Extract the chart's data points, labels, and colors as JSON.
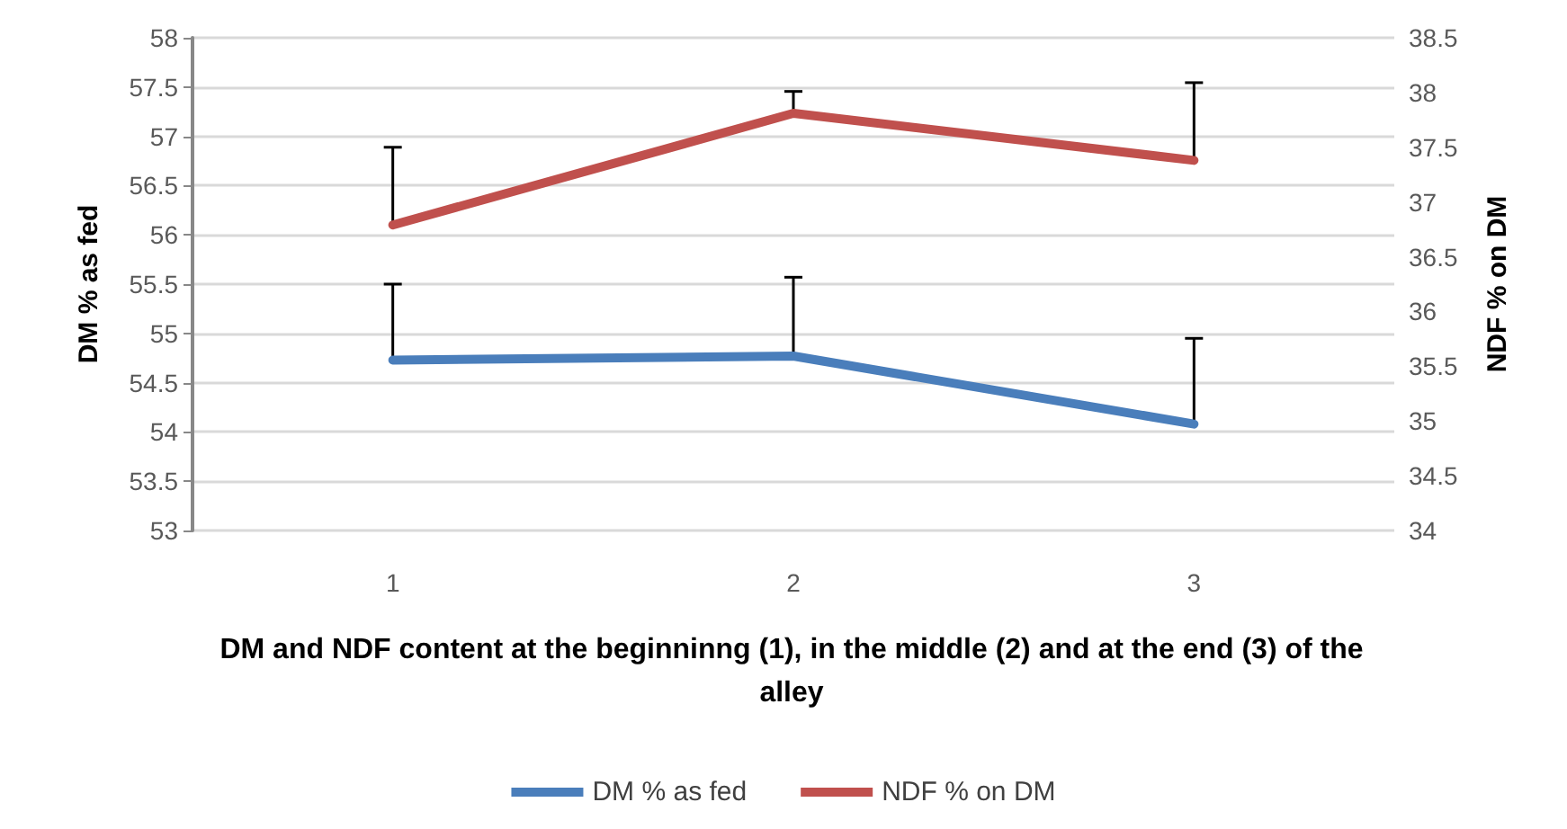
{
  "chart_data": {
    "type": "line",
    "xlabel": "DM and NDF content at the beginninng (1), in the middle (2) and at the end (3) of the alley",
    "ylabel": "DM % as fed",
    "y2label": "NDF % on DM",
    "categories": [
      "1",
      "2",
      "3"
    ],
    "series": [
      {
        "name": "DM % as fed",
        "color": "#4a7ebb",
        "values": [
          54.73,
          54.77,
          54.08
        ],
        "errors": [
          [
            54.73,
            55.5
          ],
          [
            54.77,
            55.57
          ],
          [
            54.08,
            54.95
          ]
        ]
      },
      {
        "name": "NDF % on DM",
        "color": "#c0504d",
        "axis": "y2",
        "values": [
          36.79,
          37.81,
          37.38
        ],
        "errors": [
          [
            36.79,
            37.5
          ],
          [
            37.81,
            38.01
          ],
          [
            37.38,
            38.09
          ]
        ]
      }
    ],
    "ylim": [
      53,
      58
    ],
    "yticks": [
      53,
      53.5,
      54,
      54.5,
      55,
      55.5,
      56,
      56.5,
      57,
      57.5,
      58
    ],
    "y2lim": [
      34,
      38.5
    ],
    "y2ticks": [
      34,
      34.5,
      35,
      35.5,
      36,
      36.5,
      37,
      37.5,
      38,
      38.5
    ],
    "grid": "y",
    "legend": "bottom",
    "marker": "none",
    "line_style": "solid"
  }
}
